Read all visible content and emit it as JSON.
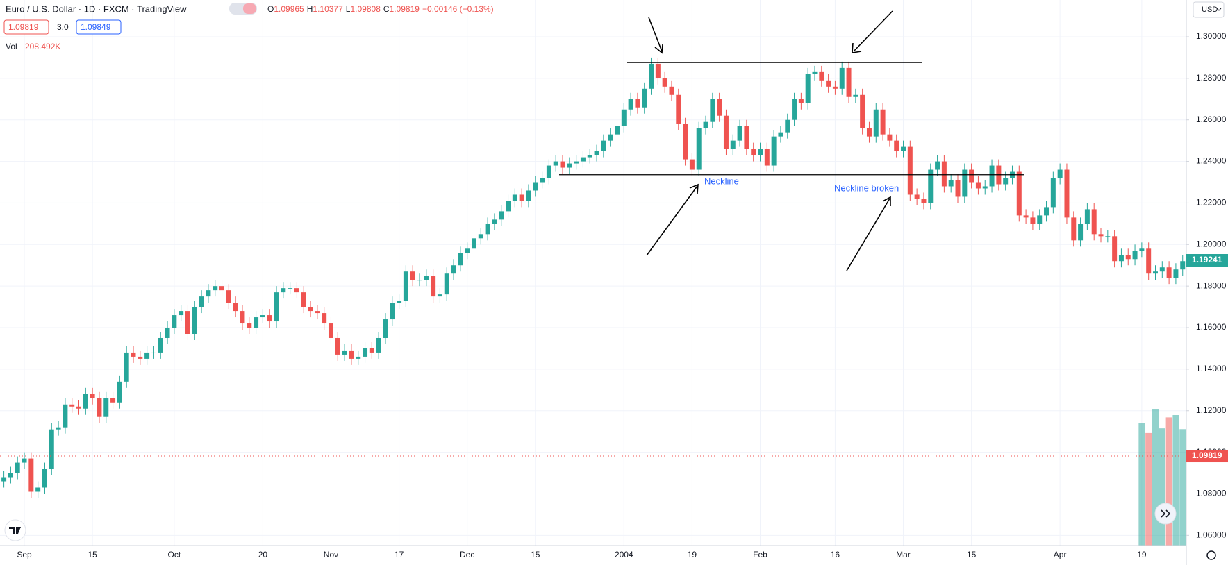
{
  "chart_data": {
    "type": "candlestick",
    "header": {
      "title": "Euro / U.S. Dollar · 1D · FXCM · TradingView",
      "ohlc": [
        {
          "label": "O",
          "value": "1.09965"
        },
        {
          "label": "H",
          "value": "1.10377"
        },
        {
          "label": "L",
          "value": "1.09808"
        },
        {
          "label": "C",
          "value": "1.09819"
        }
      ],
      "change": "−0.00146 (−0.13%)",
      "boxes": [
        "1.09819",
        "3.0",
        "1.09849"
      ]
    },
    "currency": "USD",
    "volume_title": "Vol",
    "volume_current_label": "208.492K",
    "annotations": [
      "Neckline",
      "Neckline broken"
    ],
    "levels": [
      1.2876,
      1.2336
    ],
    "up_color": "#26a69a",
    "down_color": "#ef5350",
    "grid": true,
    "ylim": [
      1.0551,
      1.3177
    ],
    "yticks": [
      {
        "value": 1.06,
        "label": "1.06000"
      },
      {
        "value": 1.08,
        "label": "1.08000"
      },
      {
        "value": 1.1,
        "label": "1.10000"
      },
      {
        "value": 1.12,
        "label": "1.12000"
      },
      {
        "value": 1.14,
        "label": "1.14000"
      },
      {
        "value": 1.16,
        "label": "1.16000"
      },
      {
        "value": 1.18,
        "label": "1.18000"
      },
      {
        "value": 1.2,
        "label": "1.20000"
      },
      {
        "value": 1.22,
        "label": "1.22000"
      },
      {
        "value": 1.24,
        "label": "1.24000"
      },
      {
        "value": 1.26,
        "label": "1.26000"
      },
      {
        "value": 1.28,
        "label": "1.28000"
      },
      {
        "value": 1.3,
        "label": "1.30000"
      }
    ],
    "price_tags": [
      {
        "value": 1.19241,
        "color": "#26a69a"
      },
      {
        "value": 1.09819,
        "color": "#ef5350"
      }
    ],
    "categories": [
      null,
      null,
      null,
      "Sep",
      null,
      null,
      null,
      null,
      null,
      null,
      null,
      null,
      null,
      "15",
      null,
      null,
      null,
      null,
      null,
      null,
      null,
      null,
      null,
      null,
      null,
      "Oct",
      null,
      null,
      null,
      null,
      null,
      null,
      null,
      null,
      null,
      null,
      null,
      null,
      "20",
      null,
      null,
      null,
      null,
      null,
      null,
      null,
      null,
      null,
      "Nov",
      null,
      null,
      null,
      null,
      null,
      null,
      null,
      null,
      null,
      "17",
      null,
      null,
      null,
      null,
      null,
      null,
      null,
      null,
      null,
      "Dec",
      null,
      null,
      null,
      null,
      null,
      null,
      null,
      null,
      null,
      "15",
      null,
      null,
      null,
      null,
      null,
      null,
      null,
      null,
      null,
      null,
      null,
      null,
      "2004",
      null,
      null,
      null,
      null,
      null,
      null,
      null,
      null,
      null,
      "19",
      null,
      null,
      null,
      null,
      null,
      null,
      null,
      null,
      null,
      "Feb",
      null,
      null,
      null,
      null,
      null,
      null,
      null,
      null,
      null,
      null,
      "16",
      null,
      null,
      null,
      null,
      null,
      null,
      null,
      null,
      null,
      "Mar",
      null,
      null,
      null,
      null,
      null,
      null,
      null,
      null,
      null,
      "15",
      null,
      null,
      null,
      null,
      null,
      null,
      null,
      null,
      null,
      null,
      null,
      null,
      "Apr",
      null,
      null,
      null,
      null,
      null,
      null,
      null,
      null,
      null,
      null,
      null,
      "19",
      null,
      null,
      null,
      null,
      null,
      null
    ],
    "open": [
      1.086,
      1.088,
      1.09,
      1.095,
      1.097,
      1.081,
      1.083,
      1.092,
      1.111,
      1.112,
      1.123,
      1.122,
      1.121,
      1.128,
      1.126,
      1.117,
      1.126,
      1.124,
      1.134,
      1.148,
      1.146,
      1.145,
      1.148,
      1.148,
      1.155,
      1.16,
      1.166,
      1.168,
      1.157,
      1.17,
      1.175,
      1.178,
      1.18,
      1.178,
      1.172,
      1.168,
      1.162,
      1.16,
      1.165,
      1.166,
      1.163,
      1.177,
      1.179,
      1.179,
      1.177,
      1.17,
      1.168,
      1.167,
      1.162,
      1.155,
      1.147,
      1.149,
      1.145,
      1.146,
      1.15,
      1.148,
      1.155,
      1.164,
      1.172,
      1.173,
      1.187,
      1.183,
      1.183,
      1.185,
      1.175,
      1.176,
      1.186,
      1.19,
      1.196,
      1.198,
      1.203,
      1.205,
      1.21,
      1.212,
      1.216,
      1.221,
      1.224,
      1.221,
      1.226,
      1.23,
      1.232,
      1.238,
      1.24,
      1.237,
      1.239,
      1.24,
      1.242,
      1.243,
      1.245,
      1.25,
      1.253,
      1.257,
      1.265,
      1.27,
      1.266,
      1.275,
      1.287,
      1.28,
      1.276,
      1.272,
      1.258,
      1.241,
      1.236,
      1.256,
      1.259,
      1.27,
      1.262,
      1.246,
      1.25,
      1.257,
      1.246,
      1.243,
      1.246,
      1.238,
      1.252,
      1.254,
      1.26,
      1.27,
      1.268,
      1.282,
      1.283,
      1.279,
      1.276,
      1.275,
      1.285,
      1.271,
      1.272,
      1.256,
      1.252,
      1.265,
      1.253,
      1.25,
      1.245,
      1.247,
      1.224,
      1.222,
      1.22,
      1.236,
      1.24,
      1.228,
      1.231,
      1.223,
      1.236,
      1.23,
      1.227,
      1.228,
      1.238,
      1.229,
      1.232,
      1.235,
      1.214,
      1.213,
      1.21,
      1.214,
      1.218,
      1.232,
      1.236,
      1.213,
      1.202,
      1.21,
      1.217,
      1.205,
      1.204,
      1.204,
      1.192,
      1.195,
      1.193,
      1.197,
      1.198,
      1.186,
      1.187,
      1.189,
      1.184,
      1.188
    ],
    "high": [
      1.091,
      1.093,
      1.098,
      1.1,
      1.1,
      1.086,
      1.095,
      1.114,
      1.115,
      1.126,
      1.126,
      1.125,
      1.131,
      1.131,
      1.129,
      1.129,
      1.129,
      1.137,
      1.151,
      1.151,
      1.149,
      1.151,
      1.151,
      1.158,
      1.163,
      1.169,
      1.171,
      1.171,
      1.173,
      1.178,
      1.181,
      1.183,
      1.183,
      1.181,
      1.175,
      1.171,
      1.165,
      1.168,
      1.169,
      1.169,
      1.18,
      1.182,
      1.182,
      1.182,
      1.18,
      1.173,
      1.171,
      1.17,
      1.165,
      1.158,
      1.152,
      1.152,
      1.149,
      1.153,
      1.153,
      1.158,
      1.167,
      1.175,
      1.176,
      1.19,
      1.19,
      1.186,
      1.188,
      1.188,
      1.179,
      1.189,
      1.193,
      1.199,
      1.201,
      1.206,
      1.208,
      1.213,
      1.215,
      1.219,
      1.224,
      1.227,
      1.227,
      1.229,
      1.233,
      1.235,
      1.241,
      1.243,
      1.243,
      1.242,
      1.243,
      1.245,
      1.246,
      1.248,
      1.253,
      1.256,
      1.26,
      1.268,
      1.273,
      1.273,
      1.278,
      1.29,
      1.29,
      1.283,
      1.279,
      1.275,
      1.261,
      1.244,
      1.259,
      1.262,
      1.273,
      1.273,
      1.265,
      1.253,
      1.26,
      1.26,
      1.249,
      1.249,
      1.249,
      1.255,
      1.257,
      1.263,
      1.273,
      1.273,
      1.285,
      1.286,
      1.286,
      1.282,
      1.279,
      1.288,
      1.288,
      1.275,
      1.275,
      1.259,
      1.268,
      1.268,
      1.256,
      1.253,
      1.25,
      1.25,
      1.227,
      1.225,
      1.239,
      1.243,
      1.243,
      1.234,
      1.234,
      1.239,
      1.239,
      1.233,
      1.231,
      1.241,
      1.241,
      1.235,
      1.238,
      1.238,
      1.217,
      1.216,
      1.217,
      1.221,
      1.235,
      1.239,
      1.239,
      1.216,
      1.213,
      1.22,
      1.22,
      1.208,
      1.207,
      1.207,
      1.198,
      1.198,
      1.2,
      1.201,
      1.201,
      1.19,
      1.192,
      1.192,
      1.191,
      1.195
    ],
    "low": [
      1.083,
      1.085,
      1.087,
      1.092,
      1.078,
      1.078,
      1.08,
      1.089,
      1.108,
      1.109,
      1.119,
      1.118,
      1.118,
      1.123,
      1.114,
      1.114,
      1.121,
      1.121,
      1.131,
      1.143,
      1.142,
      1.142,
      1.145,
      1.145,
      1.152,
      1.157,
      1.163,
      1.154,
      1.154,
      1.167,
      1.172,
      1.175,
      1.175,
      1.169,
      1.165,
      1.159,
      1.157,
      1.157,
      1.162,
      1.16,
      1.16,
      1.174,
      1.176,
      1.174,
      1.167,
      1.165,
      1.164,
      1.159,
      1.152,
      1.144,
      1.144,
      1.142,
      1.142,
      1.143,
      1.145,
      1.145,
      1.152,
      1.161,
      1.169,
      1.17,
      1.18,
      1.18,
      1.18,
      1.172,
      1.172,
      1.173,
      1.183,
      1.187,
      1.193,
      1.195,
      1.2,
      1.202,
      1.207,
      1.209,
      1.213,
      1.218,
      1.218,
      1.218,
      1.223,
      1.227,
      1.229,
      1.235,
      1.234,
      1.234,
      1.236,
      1.237,
      1.239,
      1.24,
      1.242,
      1.247,
      1.25,
      1.254,
      1.262,
      1.263,
      1.263,
      1.272,
      1.277,
      1.273,
      1.269,
      1.255,
      1.238,
      1.233,
      1.233,
      1.253,
      1.256,
      1.259,
      1.243,
      1.243,
      1.247,
      1.243,
      1.24,
      1.24,
      1.235,
      1.235,
      1.249,
      1.251,
      1.257,
      1.265,
      1.265,
      1.279,
      1.276,
      1.273,
      1.272,
      1.272,
      1.268,
      1.268,
      1.253,
      1.249,
      1.249,
      1.25,
      1.247,
      1.242,
      1.242,
      1.221,
      1.219,
      1.217,
      1.217,
      1.233,
      1.225,
      1.225,
      1.22,
      1.22,
      1.227,
      1.224,
      1.224,
      1.225,
      1.226,
      1.226,
      1.229,
      1.211,
      1.21,
      1.207,
      1.207,
      1.211,
      1.215,
      1.229,
      1.21,
      1.199,
      1.199,
      1.207,
      1.202,
      1.201,
      1.201,
      1.189,
      1.189,
      1.19,
      1.19,
      1.194,
      1.183,
      1.183,
      1.184,
      1.181,
      1.181,
      1.185
    ],
    "close": [
      1.088,
      1.09,
      1.095,
      1.097,
      1.081,
      1.083,
      1.092,
      1.111,
      1.112,
      1.123,
      1.122,
      1.121,
      1.128,
      1.126,
      1.117,
      1.126,
      1.124,
      1.134,
      1.148,
      1.146,
      1.145,
      1.148,
      1.148,
      1.155,
      1.16,
      1.166,
      1.168,
      1.157,
      1.17,
      1.175,
      1.178,
      1.18,
      1.178,
      1.172,
      1.168,
      1.162,
      1.16,
      1.165,
      1.166,
      1.163,
      1.177,
      1.179,
      1.179,
      1.177,
      1.17,
      1.168,
      1.167,
      1.162,
      1.155,
      1.147,
      1.149,
      1.145,
      1.146,
      1.15,
      1.148,
      1.155,
      1.164,
      1.172,
      1.173,
      1.187,
      1.183,
      1.183,
      1.185,
      1.175,
      1.176,
      1.186,
      1.19,
      1.196,
      1.198,
      1.203,
      1.205,
      1.21,
      1.212,
      1.216,
      1.221,
      1.224,
      1.221,
      1.226,
      1.23,
      1.232,
      1.238,
      1.24,
      1.237,
      1.239,
      1.24,
      1.242,
      1.243,
      1.245,
      1.25,
      1.253,
      1.257,
      1.265,
      1.27,
      1.266,
      1.275,
      1.287,
      1.28,
      1.276,
      1.272,
      1.258,
      1.241,
      1.236,
      1.256,
      1.259,
      1.27,
      1.262,
      1.246,
      1.25,
      1.257,
      1.246,
      1.243,
      1.246,
      1.238,
      1.252,
      1.254,
      1.26,
      1.27,
      1.268,
      1.282,
      1.283,
      1.279,
      1.276,
      1.275,
      1.285,
      1.271,
      1.272,
      1.256,
      1.252,
      1.265,
      1.253,
      1.25,
      1.245,
      1.247,
      1.224,
      1.222,
      1.22,
      1.236,
      1.24,
      1.228,
      1.231,
      1.223,
      1.236,
      1.23,
      1.227,
      1.228,
      1.238,
      1.229,
      1.232,
      1.235,
      1.214,
      1.213,
      1.21,
      1.214,
      1.218,
      1.232,
      1.236,
      1.213,
      1.202,
      1.21,
      1.217,
      1.205,
      1.204,
      1.204,
      1.192,
      1.195,
      1.193,
      1.197,
      1.198,
      1.186,
      1.187,
      1.189,
      1.184,
      1.188,
      1.192
    ],
    "volume": [
      null,
      null,
      null,
      null,
      null,
      null,
      null,
      null,
      null,
      null,
      null,
      null,
      null,
      null,
      null,
      null,
      null,
      null,
      null,
      null,
      null,
      null,
      null,
      null,
      null,
      null,
      null,
      null,
      null,
      null,
      null,
      null,
      null,
      null,
      null,
      null,
      null,
      null,
      null,
      null,
      null,
      null,
      null,
      null,
      null,
      null,
      null,
      null,
      null,
      null,
      null,
      null,
      null,
      null,
      null,
      null,
      null,
      null,
      null,
      null,
      null,
      null,
      null,
      null,
      null,
      null,
      null,
      null,
      null,
      null,
      null,
      null,
      null,
      null,
      null,
      null,
      null,
      null,
      null,
      null,
      null,
      null,
      null,
      null,
      null,
      null,
      null,
      null,
      null,
      null,
      null,
      null,
      null,
      null,
      null,
      null,
      null,
      null,
      null,
      null,
      null,
      null,
      null,
      null,
      null,
      null,
      null,
      null,
      null,
      null,
      null,
      null,
      null,
      null,
      null,
      null,
      null,
      null,
      null,
      null,
      null,
      null,
      null,
      null,
      null,
      null,
      null,
      null,
      null,
      null,
      null,
      null,
      null,
      null,
      null,
      null,
      null,
      null,
      null,
      null,
      null,
      null,
      null,
      null,
      null,
      null,
      null,
      null,
      null,
      null,
      null,
      null,
      null,
      null,
      null,
      null,
      null,
      null,
      null,
      null,
      null,
      null,
      null,
      null,
      null,
      null,
      null,
      219700,
      201500,
      244900,
      209900,
      229500,
      233700,
      208492
    ]
  }
}
